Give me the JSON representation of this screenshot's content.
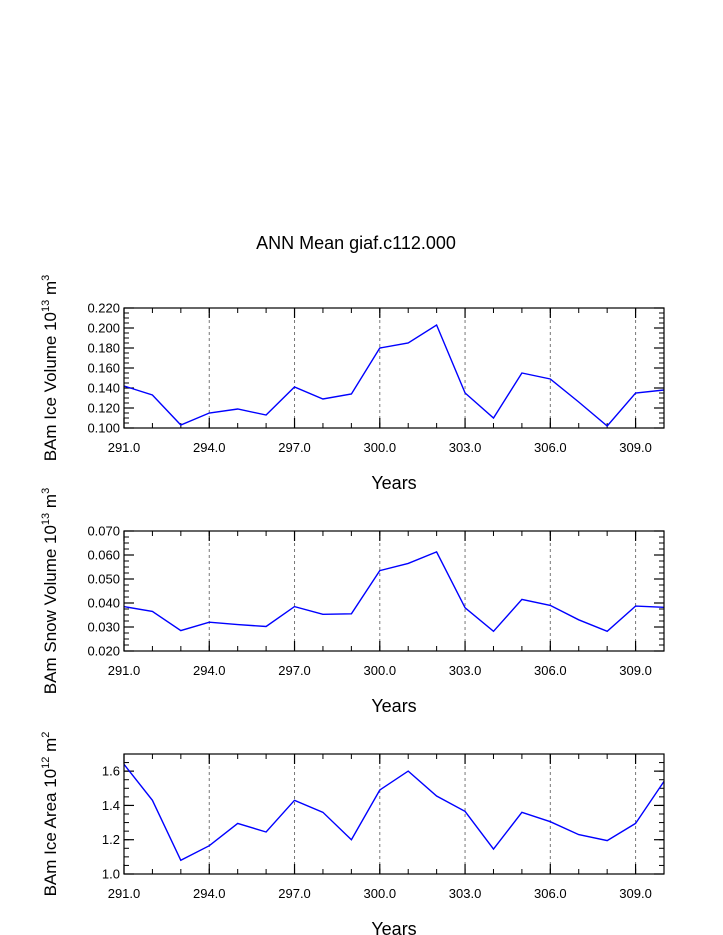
{
  "title": "ANN Mean giaf.c112.000",
  "chart_data": [
    {
      "type": "line",
      "xlabel": "Years",
      "ylabel": "BAm Ice Volume",
      "yunit_base": "10",
      "yunit_exp": "13",
      "yunit_unit": "m",
      "yunit_unit_exp": "3",
      "xlim": [
        291,
        310
      ],
      "ylim": [
        0.1,
        0.22
      ],
      "xticks": [
        "291.0",
        "294.0",
        "297.0",
        "300.0",
        "303.0",
        "306.0",
        "309.0"
      ],
      "yticks": [
        "0.100",
        "0.120",
        "0.140",
        "0.160",
        "0.180",
        "0.200",
        "0.220"
      ],
      "grid": "vertical dashed at major x ticks",
      "series": [
        {
          "name": "BAm Ice Volume",
          "color": "#0000ff",
          "x": [
            291,
            292,
            293,
            294,
            295,
            296,
            297,
            298,
            299,
            300,
            301,
            302,
            303,
            304,
            305,
            306,
            307,
            308,
            309,
            310
          ],
          "values": [
            0.142,
            0.133,
            0.103,
            0.115,
            0.119,
            0.113,
            0.141,
            0.129,
            0.134,
            0.18,
            0.185,
            0.203,
            0.135,
            0.11,
            0.155,
            0.149,
            0.126,
            0.102,
            0.135,
            0.138
          ]
        }
      ]
    },
    {
      "type": "line",
      "xlabel": "Years",
      "ylabel": "BAm Snow Volume",
      "yunit_base": "10",
      "yunit_exp": "13",
      "yunit_unit": "m",
      "yunit_unit_exp": "3",
      "xlim": [
        291,
        310
      ],
      "ylim": [
        0.02,
        0.07
      ],
      "xticks": [
        "291.0",
        "294.0",
        "297.0",
        "300.0",
        "303.0",
        "306.0",
        "309.0"
      ],
      "yticks": [
        "0.020",
        "0.030",
        "0.040",
        "0.050",
        "0.060",
        "0.070"
      ],
      "grid": "vertical dashed at major x ticks",
      "series": [
        {
          "name": "BAm Snow Volume",
          "color": "#0000ff",
          "x": [
            291,
            292,
            293,
            294,
            295,
            296,
            297,
            298,
            299,
            300,
            301,
            302,
            303,
            304,
            305,
            306,
            307,
            308,
            309,
            310
          ],
          "values": [
            0.0385,
            0.0365,
            0.0285,
            0.032,
            0.031,
            0.0302,
            0.0385,
            0.0353,
            0.0355,
            0.0535,
            0.0565,
            0.0613,
            0.038,
            0.0282,
            0.0415,
            0.039,
            0.033,
            0.0282,
            0.0387,
            0.0382
          ]
        }
      ]
    },
    {
      "type": "line",
      "xlabel": "Years",
      "ylabel": "BAm Ice Area",
      "yunit_base": "10",
      "yunit_exp": "12",
      "yunit_unit": "m",
      "yunit_unit_exp": "2",
      "xlim": [
        291,
        310
      ],
      "ylim": [
        1.0,
        1.7
      ],
      "xticks": [
        "291.0",
        "294.0",
        "297.0",
        "300.0",
        "303.0",
        "306.0",
        "309.0"
      ],
      "yticks": [
        "1.0",
        "1.2",
        "1.4",
        "1.6"
      ],
      "grid": "vertical dashed at major x ticks",
      "series": [
        {
          "name": "BAm Ice Area",
          "color": "#0000ff",
          "x": [
            291,
            292,
            293,
            294,
            295,
            296,
            297,
            298,
            299,
            300,
            301,
            302,
            303,
            304,
            305,
            306,
            307,
            308,
            309,
            310
          ],
          "values": [
            1.64,
            1.43,
            1.08,
            1.165,
            1.295,
            1.245,
            1.43,
            1.36,
            1.2,
            1.49,
            1.6,
            1.455,
            1.365,
            1.145,
            1.36,
            1.305,
            1.23,
            1.195,
            1.295,
            1.54
          ]
        }
      ]
    }
  ]
}
